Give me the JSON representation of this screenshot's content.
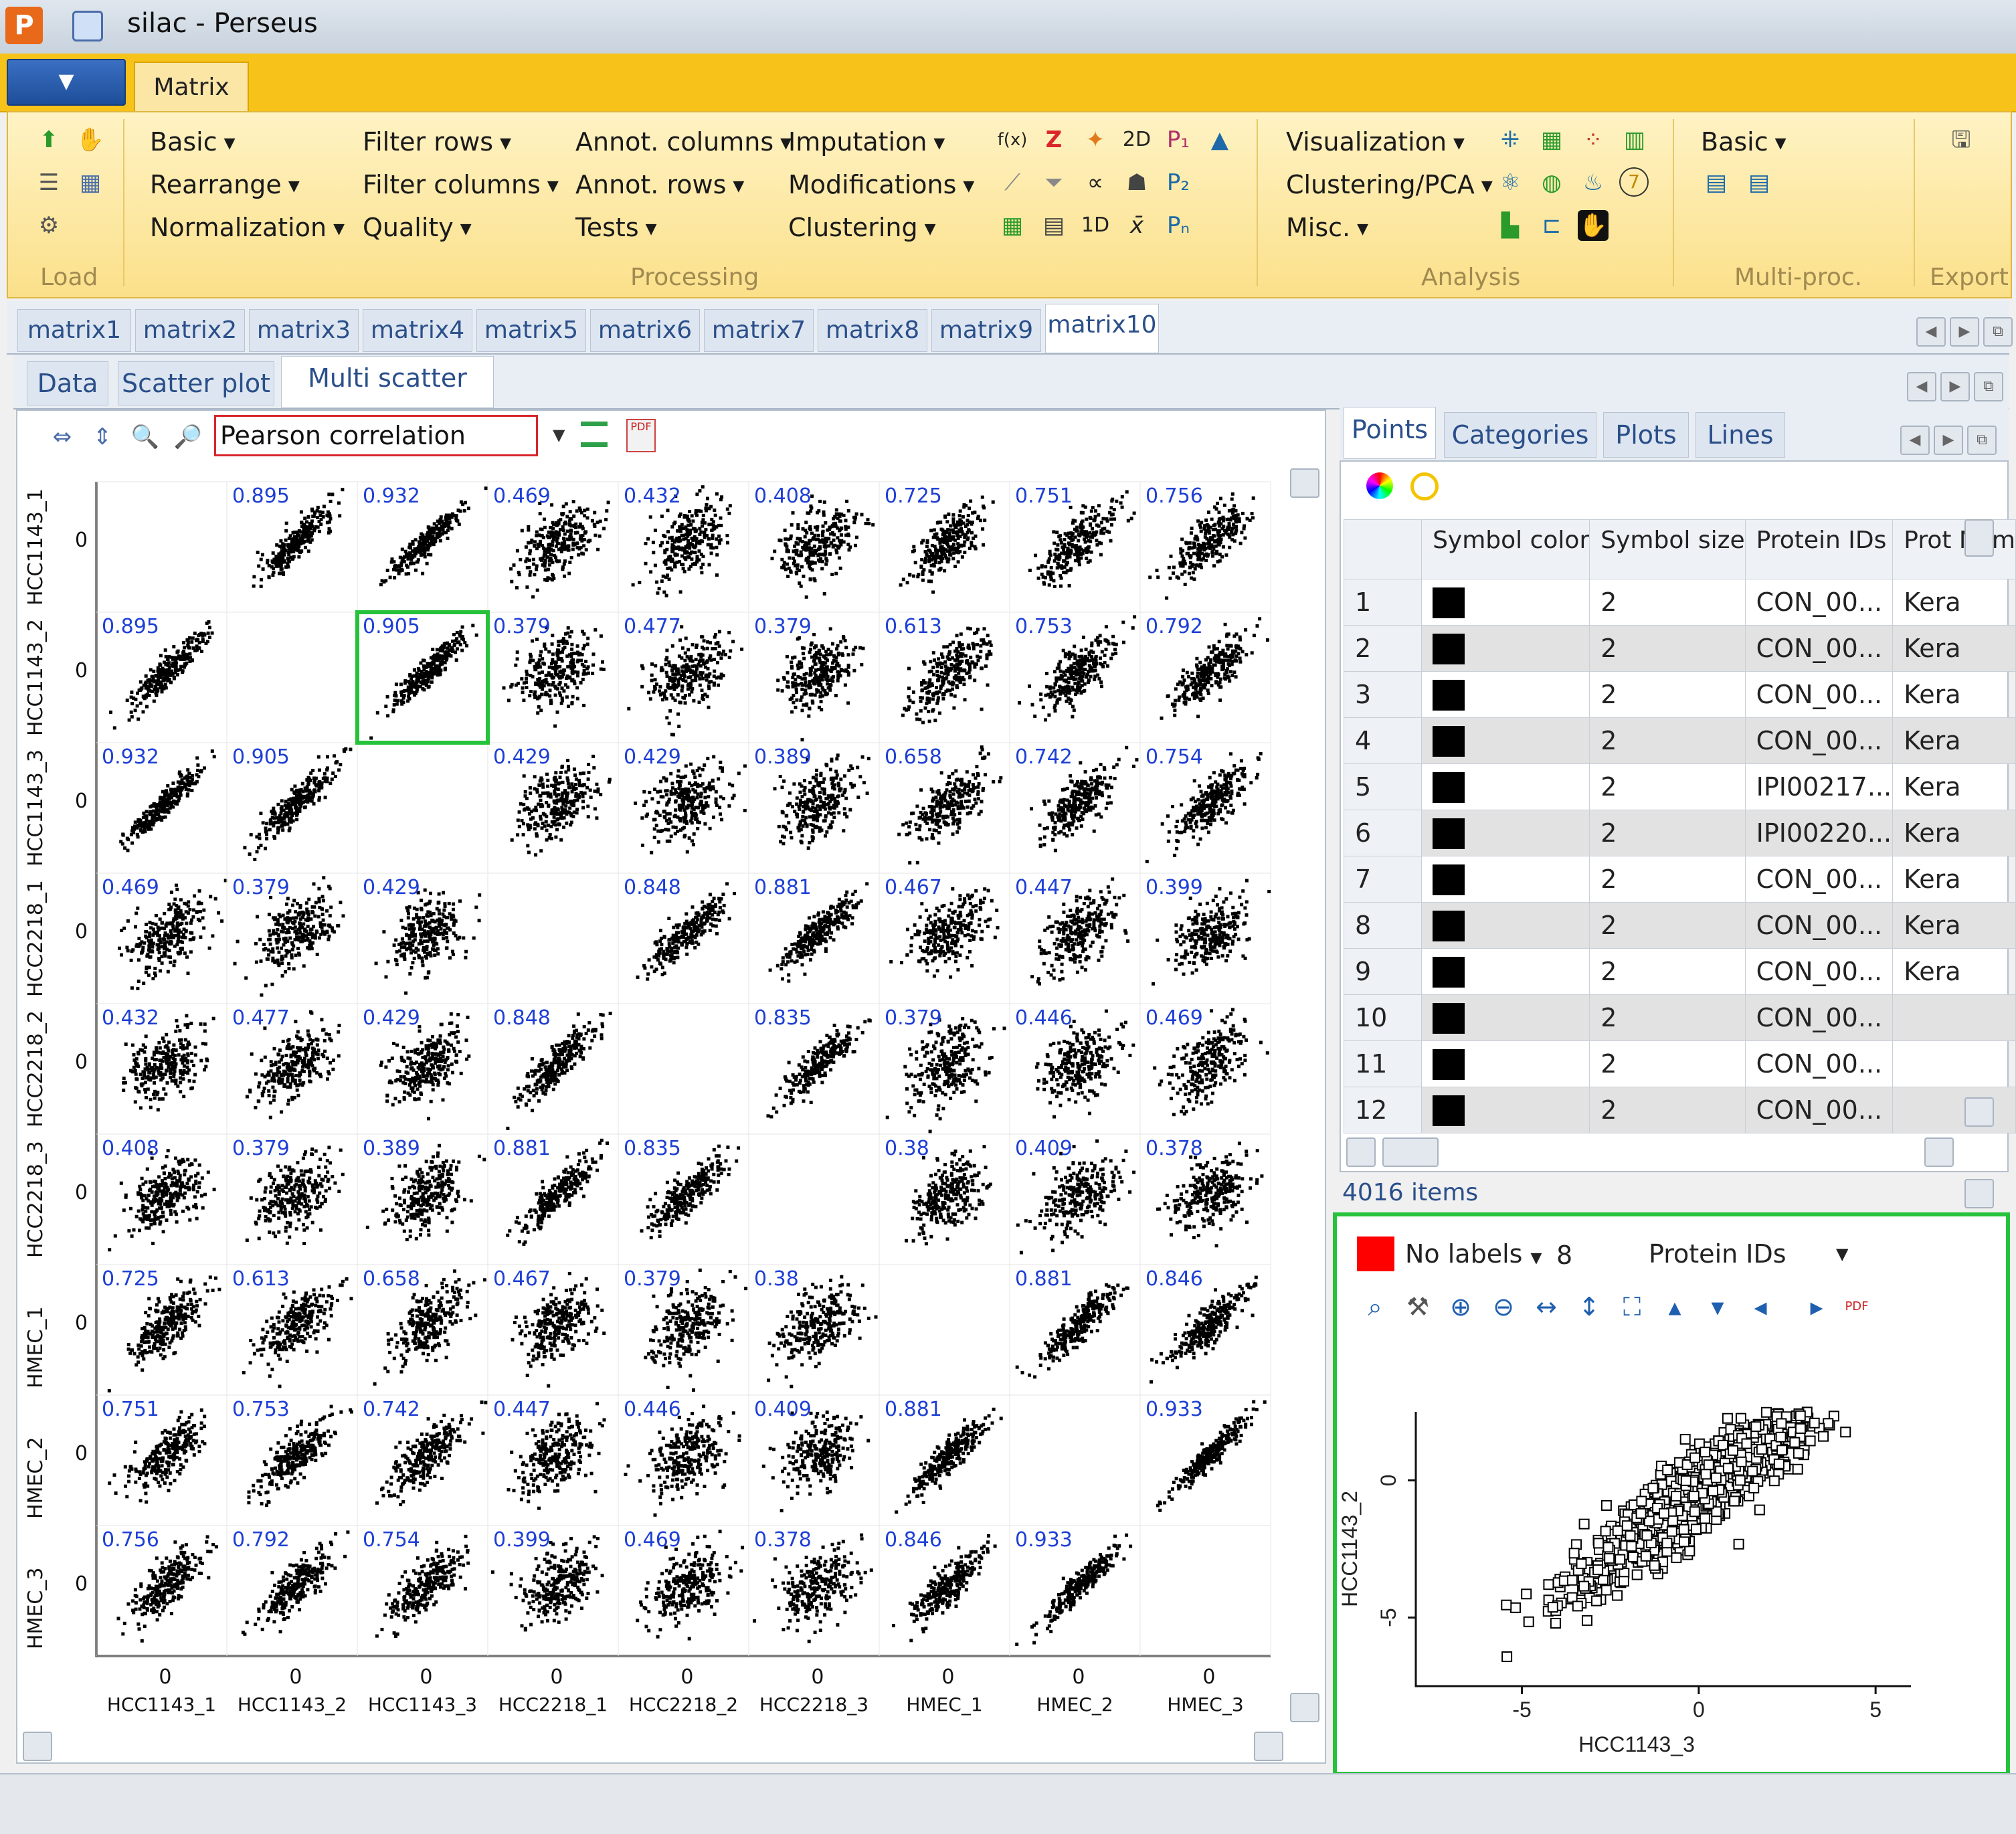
{
  "window": {
    "title": "silac  -  Perseus"
  },
  "ribbon": {
    "tab": "Matrix",
    "load_label": "Load",
    "processing_label": "Processing",
    "analysis_label": "Analysis",
    "multiproc_label": "Multi-proc.",
    "export_label": "Export",
    "processing_col1": [
      "Basic",
      "Rearrange",
      "Normalization"
    ],
    "processing_col2": [
      "Filter rows",
      "Filter columns",
      "Quality"
    ],
    "processing_col3": [
      "Annot. columns",
      "Annot. rows",
      "Tests"
    ],
    "processing_col4": [
      "Imputation",
      "Modifications",
      "Clustering"
    ],
    "analysis_col": [
      "Visualization",
      "Clustering/PCA",
      "Misc."
    ],
    "multiproc_col": [
      "Basic"
    ]
  },
  "matrix_tabs": [
    "matrix1",
    "matrix2",
    "matrix3",
    "matrix4",
    "matrix5",
    "matrix6",
    "matrix7",
    "matrix8",
    "matrix9",
    "matrix10"
  ],
  "view_tabs": [
    "Data",
    "Scatter plot",
    "Multi scatter plot"
  ],
  "multi_scatter": {
    "correlation_method": "Pearson correlation",
    "samples": [
      "HCC1143_1",
      "HCC1143_2",
      "HCC1143_3",
      "HCC2218_1",
      "HCC2218_2",
      "HCC2218_3",
      "HMEC_1",
      "HMEC_2",
      "HMEC_3"
    ],
    "correlations": [
      [
        null,
        "0.895",
        "0.932",
        "0.469",
        "0.432",
        "0.408",
        "0.725",
        "0.751",
        "0.756"
      ],
      [
        "0.895",
        null,
        "0.905",
        "0.379",
        "0.477",
        "0.379",
        "0.613",
        "0.753",
        "0.792"
      ],
      [
        "0.932",
        "0.905",
        null,
        "0.429",
        "0.429",
        "0.389",
        "0.658",
        "0.742",
        "0.754"
      ],
      [
        "0.469",
        "0.379",
        "0.429",
        null,
        "0.848",
        "0.881",
        "0.467",
        "0.447",
        "0.399"
      ],
      [
        "0.432",
        "0.477",
        "0.429",
        "0.848",
        null,
        "0.835",
        "0.379",
        "0.446",
        "0.469"
      ],
      [
        "0.408",
        "0.379",
        "0.389",
        "0.881",
        "0.835",
        null,
        "0.38",
        "0.409",
        "0.378"
      ],
      [
        "0.725",
        "0.613",
        "0.658",
        "0.467",
        "0.379",
        "0.38",
        null,
        "0.881",
        "0.846"
      ],
      [
        "0.751",
        "0.753",
        "0.742",
        "0.447",
        "0.446",
        "0.409",
        "0.881",
        null,
        "0.933"
      ],
      [
        "0.756",
        "0.792",
        "0.754",
        "0.399",
        "0.469",
        "0.378",
        "0.846",
        "0.933",
        null
      ]
    ],
    "axis_zero": "0"
  },
  "right_tabs": [
    "Points",
    "Categories",
    "Plots",
    "Lines"
  ],
  "points_table": {
    "headers": [
      "Symbol color",
      "Symbol size",
      "Protein IDs",
      "Prot Nam"
    ],
    "rows": [
      {
        "n": "1",
        "size": "2",
        "ids": "CON_00...",
        "name": "Kera"
      },
      {
        "n": "2",
        "size": "2",
        "ids": "CON_00...",
        "name": "Kera"
      },
      {
        "n": "3",
        "size": "2",
        "ids": "CON_00...",
        "name": "Kera"
      },
      {
        "n": "4",
        "size": "2",
        "ids": "CON_00...",
        "name": "Kera"
      },
      {
        "n": "5",
        "size": "2",
        "ids": "IPI00217...",
        "name": "Kera"
      },
      {
        "n": "6",
        "size": "2",
        "ids": "IPI00220...",
        "name": "Kera"
      },
      {
        "n": "7",
        "size": "2",
        "ids": "CON_00...",
        "name": "Kera"
      },
      {
        "n": "8",
        "size": "2",
        "ids": "CON_00...",
        "name": "Kera"
      },
      {
        "n": "9",
        "size": "2",
        "ids": "CON_00...",
        "name": "Kera"
      },
      {
        "n": "10",
        "size": "2",
        "ids": "CON_00...",
        "name": ""
      },
      {
        "n": "11",
        "size": "2",
        "ids": "CON_00...",
        "name": ""
      },
      {
        "n": "12",
        "size": "2",
        "ids": "CON_00...",
        "name": ""
      }
    ],
    "items_count": "4016 items"
  },
  "scatter_controls": {
    "labels": "No labels",
    "label_size": "8",
    "label_column": "Protein IDs"
  },
  "chart_data": {
    "type": "scatter",
    "xlabel": "HCC1143_3",
    "ylabel": "HCC1143_2",
    "x_ticks": [
      "-5",
      "0",
      "5"
    ],
    "y_ticks": [
      "-5",
      "0"
    ],
    "xlim": [
      -8,
      6
    ],
    "ylim": [
      -7.5,
      2.5
    ],
    "correlation": 0.905,
    "n_points": 4016,
    "series_color": "#000000"
  },
  "colors": {
    "accent_ribbon": "#f7c21a",
    "highlight": "#27c23b",
    "corr_text": "#1e3fd6",
    "select_border": "#d8262b"
  }
}
